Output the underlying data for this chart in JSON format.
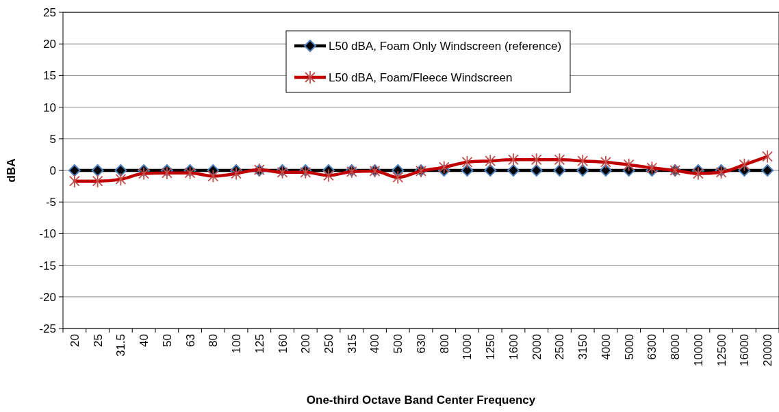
{
  "chart_data": {
    "type": "line",
    "xlabel": "One-third Octave Band Center Frequency",
    "ylabel": "dBA",
    "categories": [
      "20",
      "25",
      "31.5",
      "40",
      "50",
      "63",
      "80",
      "100",
      "125",
      "160",
      "200",
      "250",
      "315",
      "400",
      "500",
      "630",
      "800",
      "1000",
      "1250",
      "1600",
      "2000",
      "2500",
      "3150",
      "4000",
      "5000",
      "6300",
      "8000",
      "10000",
      "12500",
      "16000",
      "20000"
    ],
    "ylim": [
      -25,
      25
    ],
    "yticks": [
      -25,
      -20,
      -15,
      -10,
      -5,
      0,
      5,
      10,
      15,
      20,
      25
    ],
    "grid": "y",
    "legend": "top right",
    "series": [
      {
        "name": "L50 dBA, Foam Only Windscreen (reference)",
        "color": "#000000",
        "marker": "diamond",
        "values": [
          0,
          0,
          0,
          0,
          0,
          0,
          0,
          0,
          0,
          0,
          0,
          0,
          0,
          0,
          0,
          0,
          0,
          0,
          0,
          0,
          0,
          0,
          0,
          0,
          0,
          0,
          0,
          0,
          0,
          0,
          0
        ]
      },
      {
        "name": "L50 dBA, Foam/Fleece Windscreen",
        "color": "#c00000",
        "marker": "cross",
        "values": [
          -1.7,
          -1.7,
          -1.4,
          -0.5,
          -0.4,
          -0.4,
          -0.9,
          -0.5,
          0.1,
          -0.3,
          -0.3,
          -0.8,
          -0.2,
          -0.1,
          -1.1,
          -0.1,
          0.5,
          1.3,
          1.5,
          1.7,
          1.7,
          1.7,
          1.5,
          1.3,
          0.9,
          0.4,
          0,
          -0.5,
          -0.3,
          0.9,
          2.2
        ]
      }
    ]
  }
}
